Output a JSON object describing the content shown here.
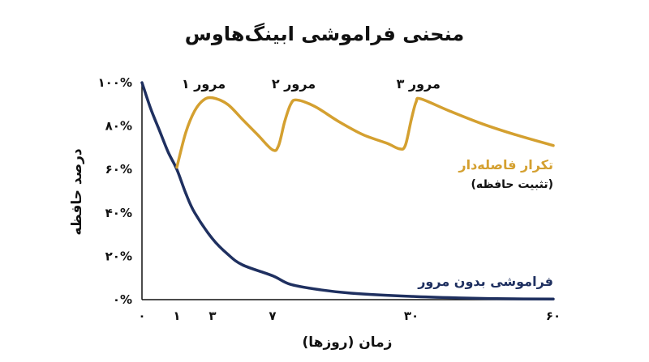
{
  "chart_data": {
    "type": "line",
    "title": "منحنی فراموشی ابینگ‌هاوس",
    "ylabel": "درصد حافظه",
    "xlabel": "زمان (روزها)",
    "ylim": [
      0,
      100
    ],
    "y_ticks": [
      {
        "value": 0,
        "label": "۰%"
      },
      {
        "value": 20,
        "label": "۲۰%"
      },
      {
        "value": 40,
        "label": "۴۰%"
      },
      {
        "value": 60,
        "label": "۶۰%"
      },
      {
        "value": 80,
        "label": "۸۰%"
      },
      {
        "value": 100,
        "label": "۱۰۰%"
      }
    ],
    "x_ticks": [
      {
        "value": 0,
        "label": "۰"
      },
      {
        "value": 1,
        "label": "۱"
      },
      {
        "value": 3,
        "label": "۳"
      },
      {
        "value": 7,
        "label": "۷"
      },
      {
        "value": 30,
        "label": "۳۰"
      },
      {
        "value": 60,
        "label": "۶۰"
      }
    ],
    "series": [
      {
        "name": "فراموشی بدون مرور",
        "color": "#1f3060",
        "points": [
          [
            0,
            100
          ],
          [
            0.25,
            88
          ],
          [
            0.5,
            78
          ],
          [
            0.75,
            68
          ],
          [
            1,
            60
          ],
          [
            1.5,
            49
          ],
          [
            2,
            40
          ],
          [
            3,
            28
          ],
          [
            4,
            21
          ],
          [
            5,
            16
          ],
          [
            7,
            11
          ],
          [
            10,
            7
          ],
          [
            15,
            4.5
          ],
          [
            20,
            3
          ],
          [
            30,
            1.5
          ],
          [
            40,
            0.8
          ],
          [
            50,
            0.4
          ],
          [
            60,
            0.3
          ]
        ]
      },
      {
        "name": "تکرار فاصله‌دار",
        "subtitle": "(تثبیت حافظه)",
        "color": "#d4a030",
        "points": [
          [
            1,
            61
          ],
          [
            1.5,
            77
          ],
          [
            2,
            87
          ],
          [
            2.5,
            92
          ],
          [
            3,
            93
          ],
          [
            4,
            90
          ],
          [
            5,
            83
          ],
          [
            6,
            76
          ],
          [
            7,
            69
          ],
          [
            8,
            71
          ],
          [
            9,
            82
          ],
          [
            10,
            90
          ],
          [
            11,
            92
          ],
          [
            14,
            89
          ],
          [
            18,
            82
          ],
          [
            22,
            76
          ],
          [
            26,
            72
          ],
          [
            28,
            69.5
          ],
          [
            29,
            71
          ],
          [
            30,
            83
          ],
          [
            31,
            91
          ],
          [
            32,
            92.5
          ],
          [
            38,
            87
          ],
          [
            45,
            81
          ],
          [
            52,
            76
          ],
          [
            60,
            71
          ]
        ]
      }
    ],
    "annotations": [
      {
        "text": "مرور ۱",
        "x": 2.5,
        "y": 100
      },
      {
        "text": "مرور ۲",
        "x": 10.5,
        "y": 100
      },
      {
        "text": "مرور ۳",
        "x": 31.5,
        "y": 100
      }
    ],
    "grid": false,
    "legend": "inline"
  }
}
